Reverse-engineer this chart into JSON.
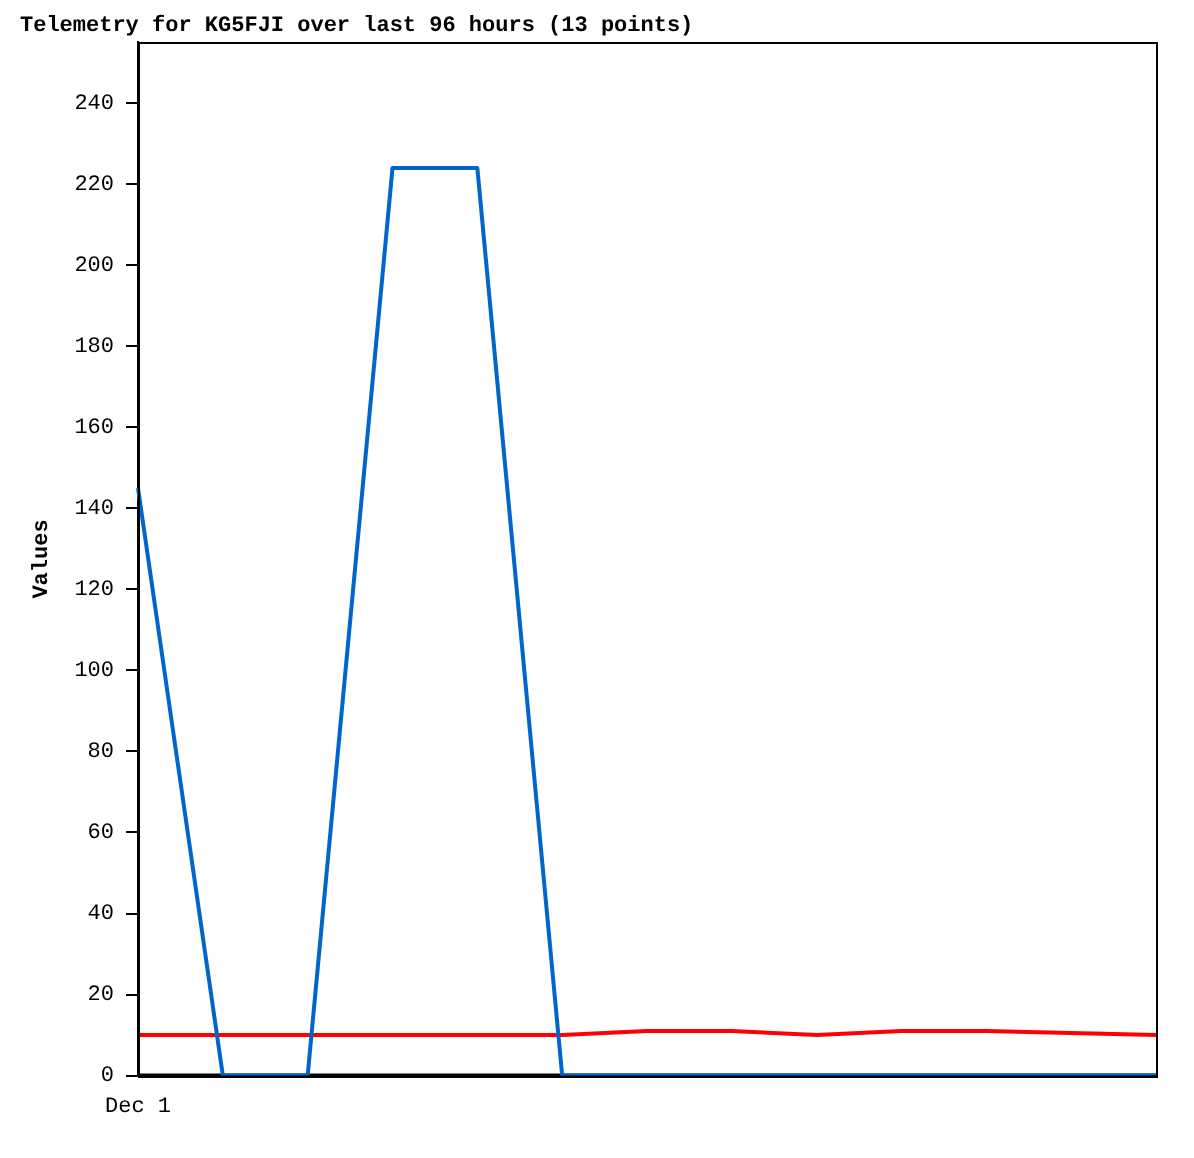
{
  "chart_data": {
    "type": "line",
    "title": "Telemetry for KG5FJI over last 96 hours (13 points)",
    "ylabel": "Values",
    "categories": [
      null,
      null,
      null,
      null,
      null,
      null,
      null,
      null,
      null,
      null,
      null,
      null,
      null
    ],
    "annotations": [
      "Dec 1"
    ],
    "series": [
      {
        "color": "#0066cc",
        "values": [
          145,
          0,
          0,
          224,
          224,
          0,
          0,
          0,
          0,
          0,
          0,
          0,
          0
        ]
      },
      {
        "color": "#ff0000",
        "values": [
          10,
          10,
          10,
          10,
          10,
          10,
          11,
          11,
          10,
          11,
          11,
          10.5,
          10
        ]
      },
      {
        "color": "#000000",
        "values": [
          0,
          0,
          0,
          0,
          0,
          0,
          0,
          0,
          0,
          0,
          0,
          0,
          0
        ]
      }
    ],
    "ylim": [
      0,
      255
    ],
    "yticks": [
      0,
      20,
      40,
      60,
      80,
      100,
      120,
      140,
      160,
      180,
      200,
      220,
      240
    ],
    "grid": false,
    "legend": false,
    "marker": "none",
    "line_style": "solid"
  }
}
